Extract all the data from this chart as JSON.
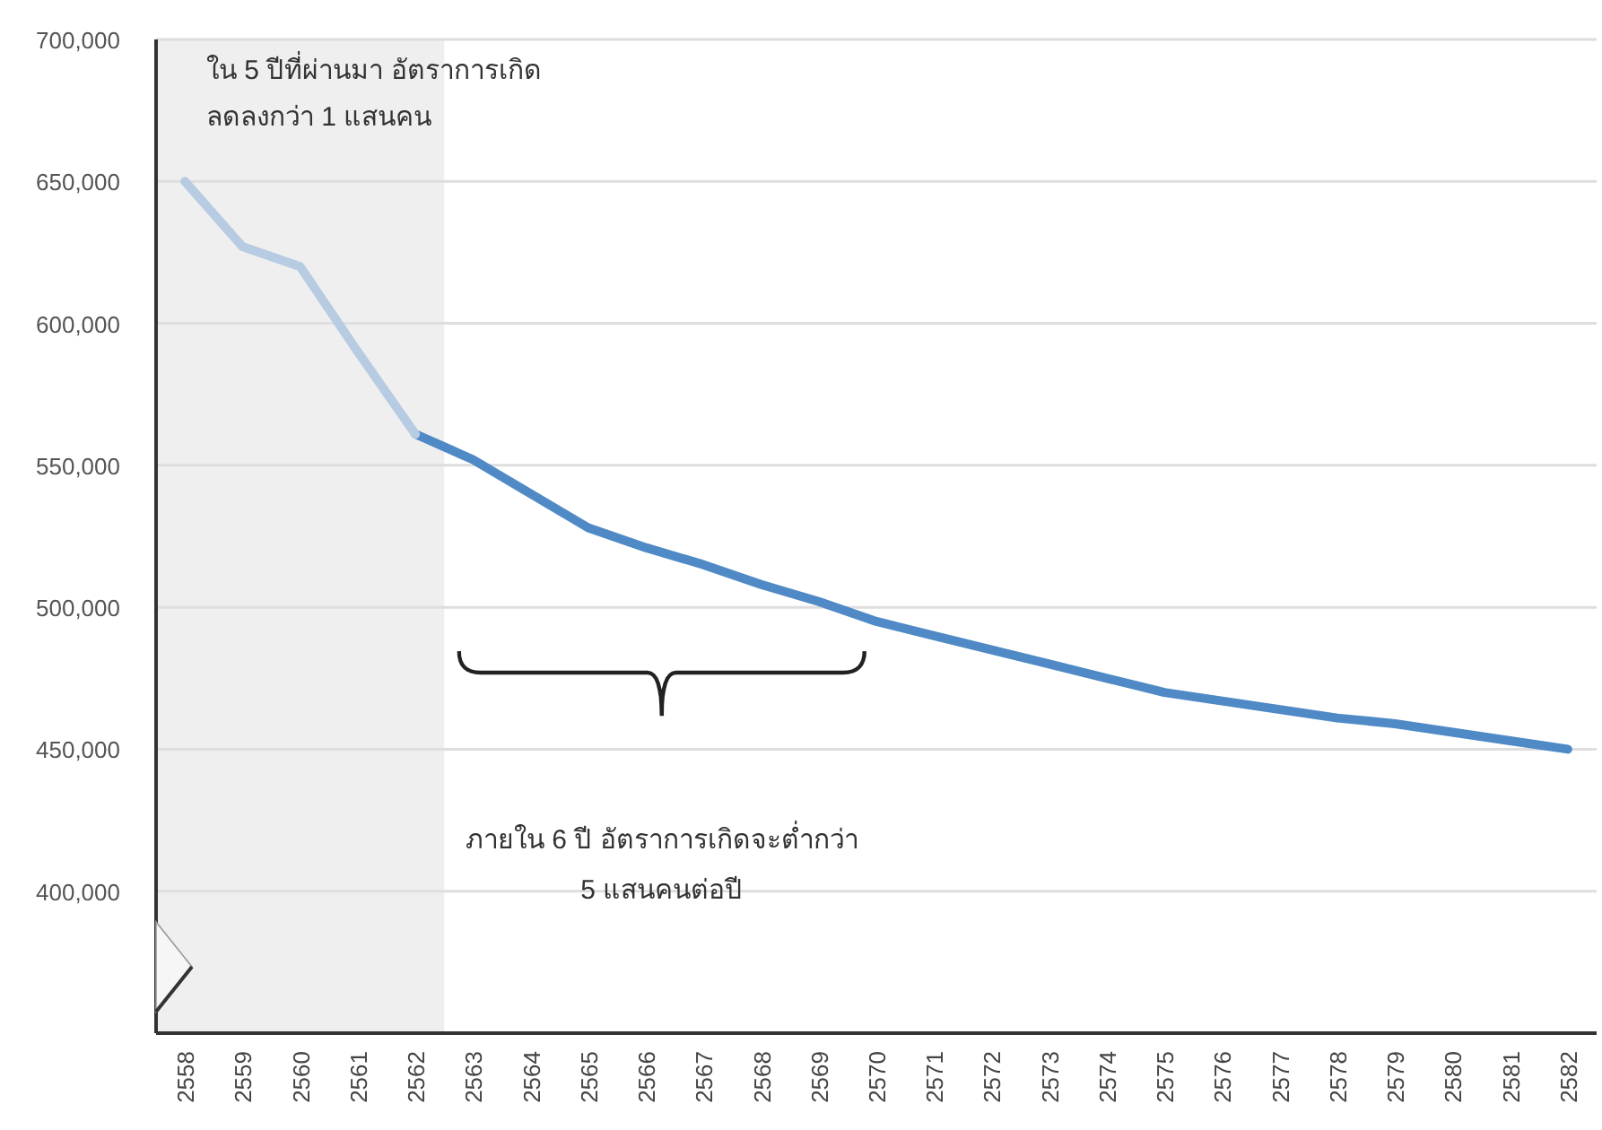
{
  "chart_data": {
    "type": "line",
    "categories": [
      "2558",
      "2559",
      "2560",
      "2561",
      "2562",
      "2563",
      "2564",
      "2565",
      "2566",
      "2567",
      "2568",
      "2569",
      "2570",
      "2571",
      "2572",
      "2573",
      "2574",
      "2575",
      "2576",
      "2577",
      "2578",
      "2579",
      "2580",
      "2581",
      "2582"
    ],
    "series": [
      {
        "color": "#b7cce2",
        "values": [
          650000,
          627000,
          620000,
          590000,
          561000,
          null,
          null,
          null,
          null,
          null,
          null,
          null,
          null,
          null,
          null,
          null,
          null,
          null,
          null,
          null,
          null,
          null,
          null,
          null,
          null
        ]
      },
      {
        "color": "#4f8ac6",
        "values": [
          null,
          null,
          null,
          null,
          561000,
          552000,
          540000,
          528000,
          521000,
          515000,
          508000,
          502000,
          495000,
          490000,
          485000,
          480000,
          475000,
          470000,
          467000,
          464000,
          461000,
          459000,
          456000,
          453000,
          450000
        ]
      }
    ],
    "ylim": [
      350000,
      700000
    ],
    "yticks": [
      {
        "value": 350000,
        "label": null
      },
      {
        "value": 400000,
        "label": "400,000"
      },
      {
        "value": 450000,
        "label": "450,000"
      },
      {
        "value": 500000,
        "label": "500,000"
      },
      {
        "value": 550000,
        "label": "550,000"
      },
      {
        "value": 600000,
        "label": "600,000"
      },
      {
        "value": 650000,
        "label": "650,000"
      },
      {
        "value": 700000,
        "label": "700,000"
      }
    ],
    "grid": "y",
    "bands": [
      {
        "axis": "x",
        "from": "2558",
        "to": "2562",
        "color": "#efefef"
      }
    ],
    "annotations": [
      "ใน 5 ปีที่ผ่านมา อัตราการเกิด\nลดลงกว่า 1 แสนคน",
      "ภายใน 6 ปี อัตราการเกิดจะต่ำกว่า\n5 แสนคนต่อปี"
    ]
  }
}
